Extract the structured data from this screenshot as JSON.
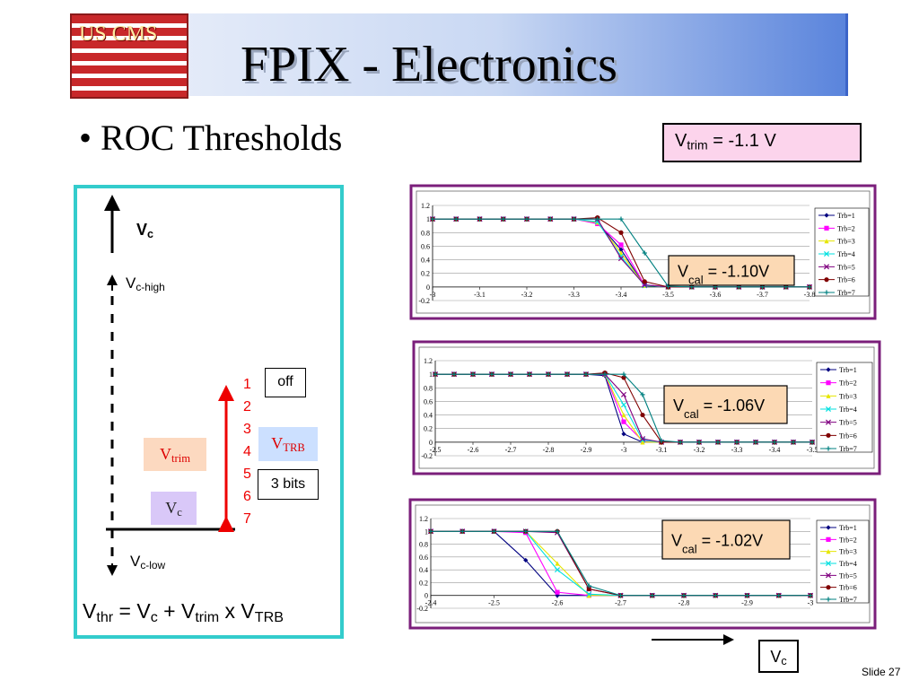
{
  "header": {
    "title": "FPIX - Electronics",
    "logo": "US CMS"
  },
  "bullet": "ROC Thresholds",
  "vtrim_box": {
    "base": "V",
    "sub": "trim",
    "rest": " = -1.1 V"
  },
  "diagram": {
    "vc_top": {
      "base": "V",
      "sub": "c"
    },
    "vc_high": {
      "base": "V",
      "sub": "c-high"
    },
    "vc_low": {
      "base": "V",
      "sub": "c-low"
    },
    "numbers": [
      "1",
      "2",
      "3",
      "4",
      "5",
      "6",
      "7"
    ],
    "off": "off",
    "vtrb": {
      "base": "V",
      "sub": "TRB"
    },
    "three_bits": "3 bits",
    "vtrim": {
      "base": "V",
      "sub": "trim"
    },
    "vc": {
      "base": "V",
      "sub": "c"
    },
    "formula": [
      {
        "text": "V",
        "sub": "thr"
      },
      {
        "text": " = V",
        "sub": "c"
      },
      {
        "text": " + V",
        "sub": "trim"
      },
      {
        "text": " x V",
        "sub": "TRB"
      }
    ]
  },
  "charts": [
    {
      "type": "line",
      "annotation": {
        "base": "V",
        "sub": "cal",
        "rest": " = -1.10V"
      },
      "x": [
        -3,
        -3.05,
        -3.1,
        -3.15,
        -3.2,
        -3.25,
        -3.3,
        -3.35,
        -3.4,
        -3.45,
        -3.5,
        -3.55,
        -3.6,
        -3.65,
        -3.7,
        -3.75,
        -3.8
      ],
      "xlim": [
        -3,
        -3.8
      ],
      "xticks": [
        -3,
        -3.1,
        -3.2,
        -3.3,
        -3.4,
        -3.5,
        -3.6,
        -3.7,
        -3.8
      ],
      "ylim": [
        -0.2,
        1.2
      ],
      "yticks": [
        -0.2,
        0,
        0.2,
        0.4,
        0.6,
        0.8,
        1,
        1.2
      ],
      "grid": true,
      "series": [
        {
          "name": "Trb=1",
          "color": "#000080",
          "values": [
            1,
            1,
            1,
            1,
            1,
            1,
            1,
            0.95,
            0.55,
            0.02,
            0,
            0,
            0,
            0,
            0,
            0,
            0
          ]
        },
        {
          "name": "Trb=2",
          "color": "#ff00ff",
          "values": [
            1,
            1,
            1,
            1,
            1,
            1,
            1,
            0.93,
            0.62,
            0.03,
            0,
            0,
            0,
            0,
            0,
            0,
            0
          ]
        },
        {
          "name": "Trb=3",
          "color": "#e6e600",
          "values": [
            1,
            1,
            1,
            1,
            1,
            1,
            1,
            0.95,
            0.5,
            0.02,
            0,
            0,
            0,
            0,
            0,
            0,
            0
          ]
        },
        {
          "name": "Trb=4",
          "color": "#00e0e0",
          "values": [
            1,
            1,
            1,
            1,
            1,
            1,
            1,
            0.96,
            0.45,
            0.02,
            0,
            0,
            0,
            0,
            0,
            0,
            0
          ]
        },
        {
          "name": "Trb=5",
          "color": "#800080",
          "values": [
            1,
            1,
            1,
            1,
            1,
            1,
            1,
            1,
            0.42,
            0.03,
            0,
            0,
            0,
            0,
            0,
            0,
            0
          ]
        },
        {
          "name": "Trb=6",
          "color": "#800000",
          "values": [
            1,
            1,
            1,
            1,
            1,
            1,
            1,
            1.02,
            0.8,
            0.08,
            0,
            0,
            0,
            0,
            0,
            0,
            0
          ]
        },
        {
          "name": "Trb=7",
          "color": "#008080",
          "values": [
            1,
            1,
            1,
            1,
            1,
            1,
            1,
            1,
            1,
            0.5,
            0.01,
            0,
            0,
            0,
            0,
            0,
            0
          ]
        }
      ]
    },
    {
      "type": "line",
      "annotation": {
        "base": "V",
        "sub": "cal",
        "rest": " = -1.06V"
      },
      "x": [
        -2.5,
        -2.55,
        -2.6,
        -2.65,
        -2.7,
        -2.75,
        -2.8,
        -2.85,
        -2.9,
        -2.95,
        -3,
        -3.05,
        -3.1,
        -3.15,
        -3.2,
        -3.25,
        -3.3,
        -3.35,
        -3.4,
        -3.45,
        -3.5
      ],
      "xlim": [
        -2.5,
        -3.5
      ],
      "xticks": [
        -2.5,
        -2.6,
        -2.7,
        -2.8,
        -2.9,
        -3,
        -3.1,
        -3.2,
        -3.3,
        -3.4,
        -3.5
      ],
      "ylim": [
        -0.2,
        1.2
      ],
      "yticks": [
        -0.2,
        0,
        0.2,
        0.4,
        0.6,
        0.8,
        1,
        1.2
      ],
      "grid": true,
      "series": [
        {
          "name": "Trb=1",
          "color": "#000080",
          "values": [
            1,
            1,
            1,
            1,
            1,
            1,
            1,
            1,
            1,
            0.98,
            0.12,
            0,
            0,
            0,
            0,
            0,
            0,
            0,
            0,
            0,
            0
          ]
        },
        {
          "name": "Trb=2",
          "color": "#ff00ff",
          "values": [
            1,
            1,
            1,
            1,
            1,
            1,
            1,
            1,
            1,
            1,
            0.3,
            0.02,
            0,
            0,
            0,
            0,
            0,
            0,
            0,
            0,
            0
          ]
        },
        {
          "name": "Trb=3",
          "color": "#e6e600",
          "values": [
            1,
            1,
            1,
            1,
            1,
            1,
            1,
            1,
            1,
            1,
            0.4,
            0,
            0,
            0,
            0,
            0,
            0,
            0,
            0,
            0,
            0
          ]
        },
        {
          "name": "Trb=4",
          "color": "#00e0e0",
          "values": [
            1,
            1,
            1,
            1,
            1,
            1,
            1,
            1,
            1,
            1,
            0.55,
            0.03,
            0,
            0,
            0,
            0,
            0,
            0,
            0,
            0,
            0
          ]
        },
        {
          "name": "Trb=5",
          "color": "#800080",
          "values": [
            1,
            1,
            1,
            1,
            1,
            1,
            1,
            1,
            1,
            1,
            0.7,
            0.05,
            0,
            0,
            0,
            0,
            0,
            0,
            0,
            0,
            0
          ]
        },
        {
          "name": "Trb=6",
          "color": "#800000",
          "values": [
            1,
            1,
            1,
            1,
            1,
            1,
            1,
            1,
            1,
            1.02,
            0.95,
            0.4,
            0,
            0,
            0,
            0,
            0,
            0,
            0,
            0,
            0
          ]
        },
        {
          "name": "Trb=7",
          "color": "#008080",
          "values": [
            1,
            1,
            1,
            1,
            1,
            1,
            1,
            1,
            1,
            1,
            1,
            0.7,
            0.02,
            0,
            0,
            0,
            0,
            0,
            0,
            0,
            0
          ]
        }
      ]
    },
    {
      "type": "line",
      "annotation": {
        "base": "V",
        "sub": "cal",
        "rest": " = -1.02V"
      },
      "x": [
        -2.4,
        -2.45,
        -2.5,
        -2.55,
        -2.6,
        -2.65,
        -2.7,
        -2.75,
        -2.8,
        -2.85,
        -2.9,
        -2.95,
        -3
      ],
      "xlim": [
        -2.4,
        -3
      ],
      "xticks": [
        -2.4,
        -2.5,
        -2.6,
        -2.7,
        -2.8,
        -2.9,
        -3
      ],
      "ylim": [
        -0.2,
        1.2
      ],
      "yticks": [
        -0.2,
        0,
        0.2,
        0.4,
        0.6,
        0.8,
        1,
        1.2
      ],
      "grid": true,
      "series": [
        {
          "name": "Trb=1",
          "color": "#000080",
          "values": [
            1,
            1,
            1,
            0.55,
            0,
            0,
            0,
            0,
            0,
            0,
            0,
            0,
            0
          ]
        },
        {
          "name": "Trb=2",
          "color": "#ff00ff",
          "values": [
            1,
            1,
            1,
            0.98,
            0.05,
            0,
            0,
            0,
            0,
            0,
            0,
            0,
            0
          ]
        },
        {
          "name": "Trb=3",
          "color": "#e6e600",
          "values": [
            1,
            1,
            1,
            1,
            0.5,
            0,
            0,
            0,
            0,
            0,
            0,
            0,
            0
          ]
        },
        {
          "name": "Trb=4",
          "color": "#00e0e0",
          "values": [
            1,
            1,
            1,
            1,
            0.4,
            0.02,
            0,
            0,
            0,
            0,
            0,
            0,
            0
          ]
        },
        {
          "name": "Trb=5",
          "color": "#800080",
          "values": [
            1,
            1,
            1,
            1,
            0.98,
            0.1,
            0,
            0,
            0,
            0,
            0,
            0,
            0
          ]
        },
        {
          "name": "Trb=6",
          "color": "#800000",
          "values": [
            1,
            1,
            1,
            1,
            1,
            0.1,
            0,
            0,
            0,
            0,
            0,
            0,
            0
          ]
        },
        {
          "name": "Trb=7",
          "color": "#008080",
          "values": [
            1,
            1,
            1,
            1,
            1,
            0.15,
            0,
            0,
            0,
            0,
            0,
            0,
            0
          ]
        }
      ]
    }
  ],
  "vc_axis": {
    "base": "V",
    "sub": "c"
  },
  "footer": {
    "slide": "Slide",
    "number": "27"
  }
}
